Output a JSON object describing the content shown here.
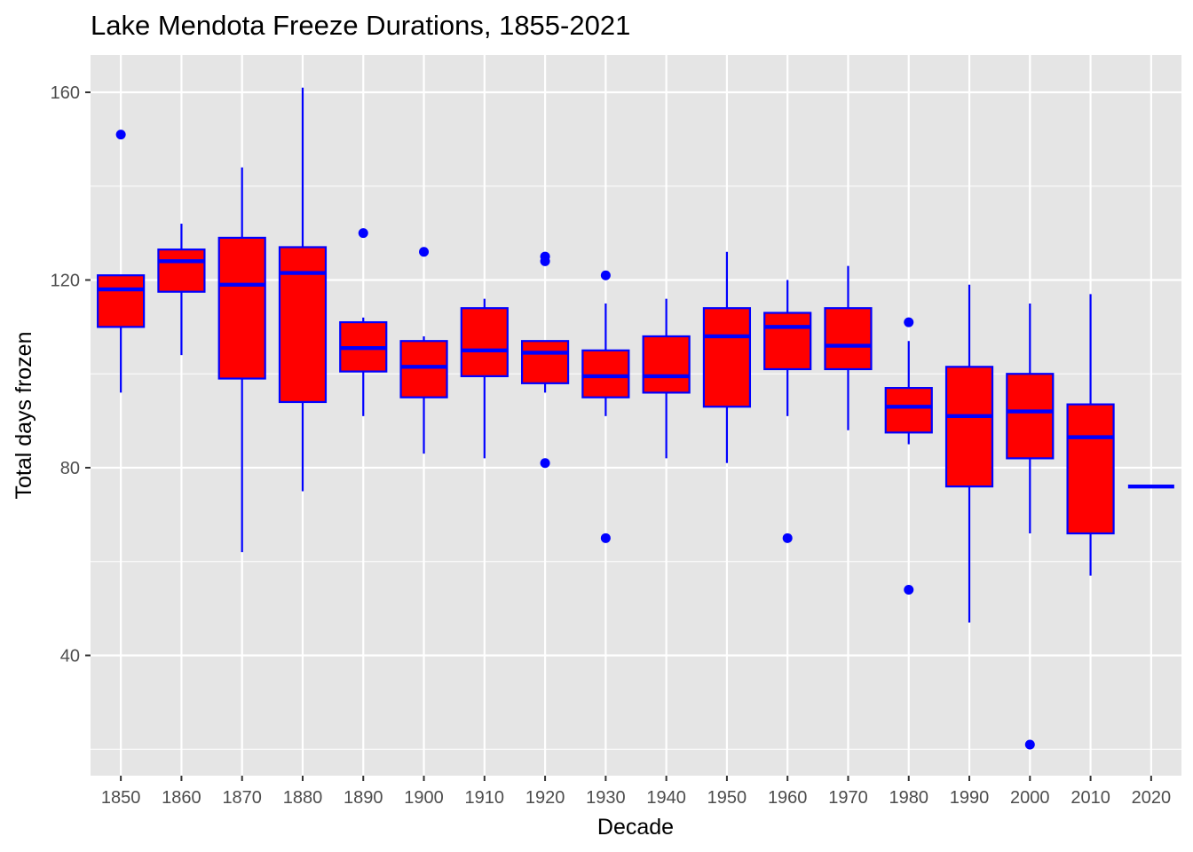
{
  "chart_data": {
    "type": "boxplot",
    "title": "Lake Mendota Freeze Durations, 1855-2021",
    "xlabel": "Decade",
    "ylabel": "Total days frozen",
    "y_ticks": [
      40,
      80,
      120,
      160
    ],
    "ylim": [
      14,
      168
    ],
    "grid": true,
    "colors": {
      "box_fill": "#ff0000",
      "box_line": "#0000ff",
      "panel": "#e5e5e5",
      "grid": "#ffffff"
    },
    "categories": [
      "1850",
      "1860",
      "1870",
      "1880",
      "1890",
      "1900",
      "1910",
      "1920",
      "1930",
      "1940",
      "1950",
      "1960",
      "1970",
      "1980",
      "1990",
      "2000",
      "2010",
      "2020"
    ],
    "boxes": [
      {
        "decade": "1850",
        "whisker_low": 96,
        "q1": 110,
        "median": 118,
        "q3": 121,
        "whisker_high": 121,
        "outliers": [
          151
        ]
      },
      {
        "decade": "1860",
        "whisker_low": 104,
        "q1": 117.5,
        "median": 124,
        "q3": 126.5,
        "whisker_high": 132,
        "outliers": []
      },
      {
        "decade": "1870",
        "whisker_low": 62,
        "q1": 99,
        "median": 119,
        "q3": 129,
        "whisker_high": 144,
        "outliers": []
      },
      {
        "decade": "1880",
        "whisker_low": 75,
        "q1": 94,
        "median": 121.5,
        "q3": 127,
        "whisker_high": 161,
        "outliers": []
      },
      {
        "decade": "1890",
        "whisker_low": 91,
        "q1": 100.5,
        "median": 105.5,
        "q3": 111,
        "whisker_high": 112,
        "outliers": [
          130
        ]
      },
      {
        "decade": "1900",
        "whisker_low": 83,
        "q1": 95,
        "median": 101.5,
        "q3": 107,
        "whisker_high": 108,
        "outliers": [
          126
        ]
      },
      {
        "decade": "1910",
        "whisker_low": 82,
        "q1": 99.5,
        "median": 105,
        "q3": 114,
        "whisker_high": 116,
        "outliers": []
      },
      {
        "decade": "1920",
        "whisker_low": 96,
        "q1": 98,
        "median": 104.5,
        "q3": 107,
        "whisker_high": 107,
        "outliers": [
          81,
          124,
          125
        ]
      },
      {
        "decade": "1930",
        "whisker_low": 91,
        "q1": 95,
        "median": 99.5,
        "q3": 105,
        "whisker_high": 115,
        "outliers": [
          65,
          121
        ]
      },
      {
        "decade": "1940",
        "whisker_low": 82,
        "q1": 96,
        "median": 99.5,
        "q3": 108,
        "whisker_high": 116,
        "outliers": []
      },
      {
        "decade": "1950",
        "whisker_low": 81,
        "q1": 93,
        "median": 108,
        "q3": 114,
        "whisker_high": 126,
        "outliers": []
      },
      {
        "decade": "1960",
        "whisker_low": 91,
        "q1": 101,
        "median": 110,
        "q3": 113,
        "whisker_high": 120,
        "outliers": [
          65
        ]
      },
      {
        "decade": "1970",
        "whisker_low": 88,
        "q1": 101,
        "median": 106,
        "q3": 114,
        "whisker_high": 123,
        "outliers": []
      },
      {
        "decade": "1980",
        "whisker_low": 85,
        "q1": 87.5,
        "median": 93,
        "q3": 97,
        "whisker_high": 107,
        "outliers": [
          54,
          111
        ]
      },
      {
        "decade": "1990",
        "whisker_low": 47,
        "q1": 76,
        "median": 91,
        "q3": 101.5,
        "whisker_high": 119,
        "outliers": []
      },
      {
        "decade": "2000",
        "whisker_low": 66,
        "q1": 82,
        "median": 92,
        "q3": 100,
        "whisker_high": 115,
        "outliers": [
          21
        ]
      },
      {
        "decade": "2010",
        "whisker_low": 57,
        "q1": 66,
        "median": 86.5,
        "q3": 93.5,
        "whisker_high": 117,
        "outliers": []
      },
      {
        "decade": "2020",
        "whisker_low": 76,
        "q1": 76,
        "median": 76,
        "q3": 76,
        "whisker_high": 76,
        "outliers": []
      }
    ]
  }
}
